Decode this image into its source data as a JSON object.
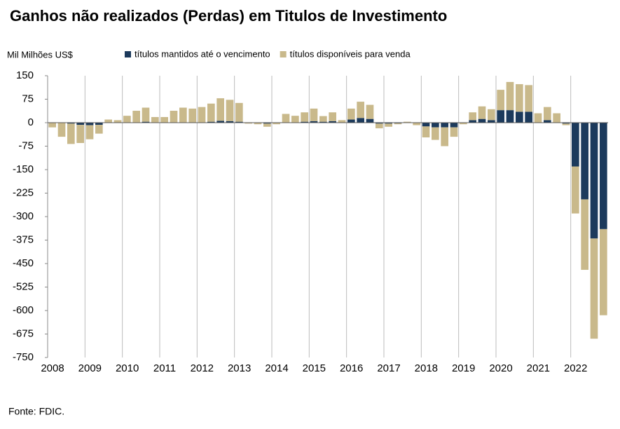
{
  "chart_data": {
    "type": "stacked_bar",
    "title": "Ganhos não realizados (Perdas) em Titulos de Investimento",
    "y_axis_label": "Mil Milhões US$",
    "source": "Fonte: FDIC.",
    "categories": [
      "2008",
      null,
      null,
      null,
      "2009",
      null,
      null,
      null,
      "2010",
      null,
      null,
      null,
      "2011",
      null,
      null,
      null,
      "2012",
      null,
      null,
      null,
      "2013",
      null,
      null,
      null,
      "2014",
      null,
      null,
      null,
      "2015",
      null,
      null,
      null,
      "2016",
      null,
      null,
      null,
      "2017",
      null,
      null,
      null,
      "2018",
      null,
      null,
      null,
      "2019",
      null,
      null,
      null,
      "2020",
      null,
      null,
      null,
      "2021",
      null,
      null,
      null,
      "2022",
      null,
      null,
      null
    ],
    "series": [
      {
        "name": "títulos mantidos até o vencimento",
        "color": "#1c3a5c",
        "values": [
          0,
          0,
          -3,
          -7,
          -8,
          -7,
          0,
          0,
          0,
          0,
          3,
          0,
          0,
          0,
          0,
          0,
          0,
          3,
          6,
          5,
          3,
          0,
          0,
          -3,
          0,
          0,
          0,
          3,
          5,
          3,
          5,
          0,
          10,
          15,
          12,
          -3,
          -3,
          -2,
          0,
          0,
          -12,
          -15,
          -15,
          -15,
          0,
          8,
          12,
          8,
          40,
          40,
          35,
          35,
          0,
          8,
          0,
          -3,
          -140,
          -245,
          -370,
          -340
        ]
      },
      {
        "name": "títulos disponíveis para venda",
        "color": "#c9b98b",
        "values": [
          -15,
          -45,
          -65,
          -58,
          -45,
          -28,
          10,
          8,
          22,
          38,
          45,
          18,
          18,
          38,
          48,
          45,
          50,
          58,
          72,
          68,
          60,
          -3,
          -5,
          -10,
          -5,
          28,
          22,
          30,
          40,
          18,
          28,
          8,
          35,
          52,
          45,
          -15,
          -10,
          -3,
          3,
          -8,
          -35,
          -40,
          -60,
          -30,
          -5,
          25,
          40,
          35,
          65,
          90,
          88,
          85,
          30,
          42,
          30,
          -5,
          -150,
          -225,
          -320,
          -275
        ]
      }
    ],
    "ylim": [
      -750,
      150
    ],
    "yticks": [
      150,
      75,
      0,
      -75,
      -150,
      -225,
      -300,
      -375,
      -450,
      -525,
      -600,
      -675,
      -750
    ],
    "legend": "top"
  }
}
